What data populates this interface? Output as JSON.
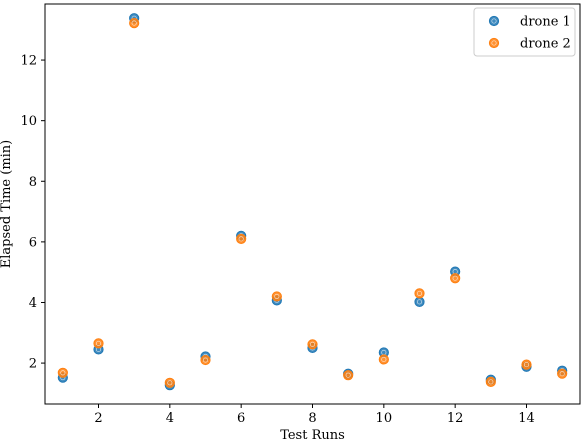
{
  "chart_data": {
    "type": "scatter",
    "xlabel": "Test Runs",
    "ylabel": "Elapsed Time (min)",
    "xlim": [
      0.5,
      15.5
    ],
    "ylim": [
      0.65,
      13.85
    ],
    "xticks": [
      2,
      4,
      6,
      8,
      10,
      12,
      14
    ],
    "yticks": [
      2,
      4,
      6,
      8,
      10,
      12
    ],
    "grid": false,
    "legend_position": "top-right",
    "x": [
      1,
      2,
      3,
      4,
      5,
      6,
      7,
      8,
      9,
      10,
      11,
      12,
      13,
      14,
      15
    ],
    "series": [
      {
        "name": "drone 1",
        "color": "#1f77b4",
        "values": [
          1.52,
          2.45,
          13.38,
          1.27,
          2.22,
          6.2,
          4.07,
          2.5,
          1.65,
          2.35,
          4.02,
          5.02,
          1.45,
          1.88,
          1.75
        ]
      },
      {
        "name": "drone 2",
        "color": "#ff7f0e",
        "values": [
          1.68,
          2.65,
          13.22,
          1.35,
          2.1,
          6.1,
          4.2,
          2.62,
          1.6,
          2.12,
          4.3,
          4.8,
          1.38,
          1.95,
          1.65
        ]
      }
    ]
  }
}
